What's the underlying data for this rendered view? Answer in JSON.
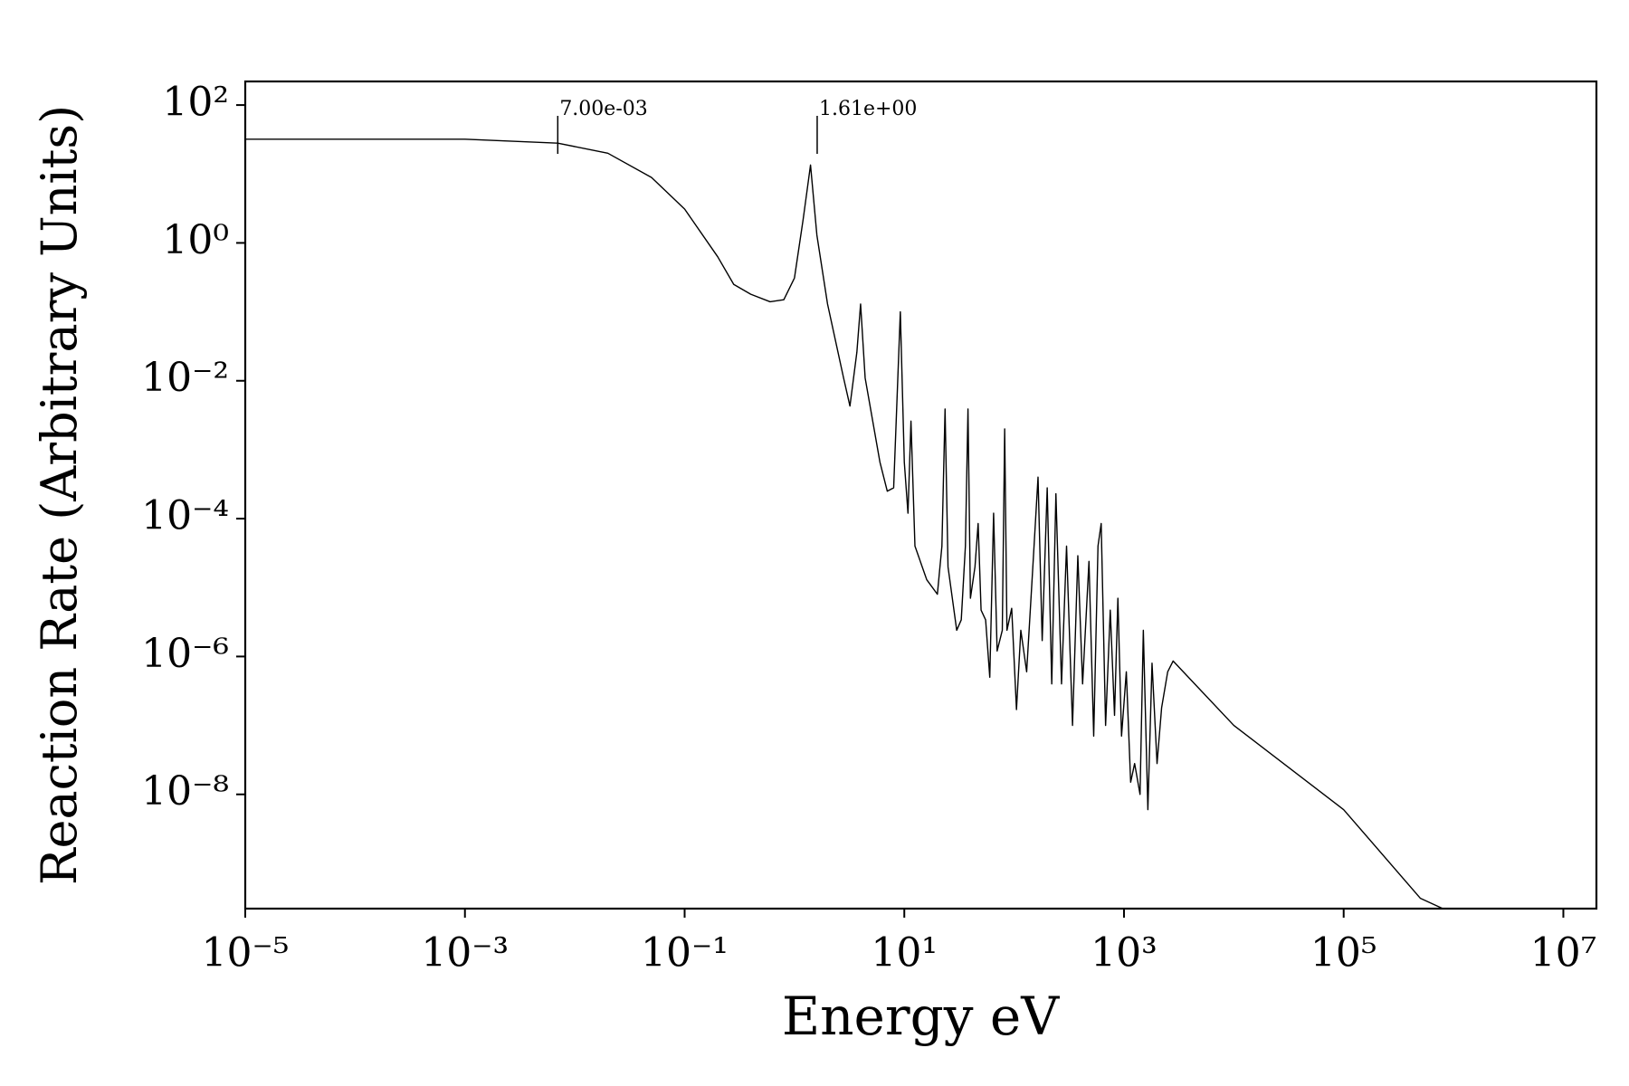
{
  "chart_data": {
    "type": "line",
    "xlabel": "Energy eV",
    "ylabel": "Reaction Rate (Arbitrary Units)",
    "xscale": "log",
    "yscale": "log",
    "xlim": [
      1e-05,
      20000000.0
    ],
    "ylim": [
      2.2e-10,
      220
    ],
    "xticks": [
      {
        "value": 1e-05,
        "label": "10⁻⁵"
      },
      {
        "value": 0.001,
        "label": "10⁻³"
      },
      {
        "value": 0.1,
        "label": "10⁻¹"
      },
      {
        "value": 10,
        "label": "10¹"
      },
      {
        "value": 1000,
        "label": "10³"
      },
      {
        "value": 100000.0,
        "label": "10⁵"
      },
      {
        "value": 10000000.0,
        "label": "10⁷"
      }
    ],
    "yticks": [
      {
        "value": 100,
        "label": "10²"
      },
      {
        "value": 1,
        "label": "10⁰"
      },
      {
        "value": 0.01,
        "label": "10⁻²"
      },
      {
        "value": 0.0001,
        "label": "10⁻⁴"
      },
      {
        "value": 1e-06,
        "label": "10⁻⁶"
      },
      {
        "value": 1e-08,
        "label": "10⁻⁸"
      }
    ],
    "color": "#000000",
    "annotations": [
      {
        "x": 0.007,
        "label": "7.00e-03"
      },
      {
        "x": 1.61,
        "label": "1.61e+00"
      }
    ],
    "x": [
      1e-05,
      0.0001,
      0.001,
      0.007,
      0.02,
      0.05,
      0.1,
      0.2,
      0.28,
      0.4,
      0.6,
      0.8,
      1.0,
      1.2,
      1.4,
      1.6,
      2,
      2.8,
      3.2,
      3.7,
      4.0,
      4.4,
      6,
      7,
      8,
      9.2,
      10,
      10.8,
      11.5,
      12.5,
      16,
      20,
      22,
      23.5,
      25,
      30,
      33,
      36,
      38,
      40,
      44,
      47,
      50,
      55,
      60,
      65,
      70,
      78,
      82,
      86,
      95,
      105,
      115,
      130,
      150,
      165,
      180,
      200,
      220,
      240,
      270,
      300,
      340,
      380,
      420,
      480,
      530,
      580,
      620,
      680,
      750,
      820,
      880,
      950,
      1050,
      1150,
      1250,
      1400,
      1500,
      1650,
      1800,
      2000,
      2200,
      2500,
      2800,
      10000,
      100000,
      500000,
      800000
    ],
    "values": [
      32,
      32,
      32,
      28,
      20,
      8.9,
      3.1,
      0.63,
      0.25,
      0.18,
      0.14,
      0.15,
      0.31,
      2.2,
      13.5,
      1.3,
      0.13,
      0.011,
      0.0043,
      0.026,
      0.13,
      0.011,
      0.00066,
      0.00025,
      0.00028,
      0.1,
      0.00066,
      0.00012,
      0.0026,
      4e-05,
      1.3e-05,
      8e-06,
      4e-05,
      0.0039,
      2e-05,
      2.4e-06,
      3.4e-06,
      4e-05,
      0.0039,
      7e-06,
      2e-05,
      8.5e-05,
      4.7e-06,
      3.4e-06,
      5e-07,
      0.00012,
      1.2e-06,
      2.4e-06,
      0.002,
      2.4e-06,
      5e-06,
      1.7e-07,
      2.4e-06,
      6e-07,
      2.9e-05,
      0.0004,
      1.7e-06,
      0.00028,
      4e-07,
      0.00023,
      4e-07,
      4e-05,
      1e-07,
      2.9e-05,
      4e-07,
      2.4e-05,
      7e-08,
      4e-05,
      8.5e-05,
      1e-07,
      4.7e-06,
      1.4e-07,
      7e-06,
      7e-08,
      6e-07,
      1.5e-08,
      2.8e-08,
      1e-08,
      2.4e-06,
      6e-09,
      8e-07,
      2.8e-08,
      1.8e-07,
      6e-07,
      8.6e-07,
      1e-07,
      6e-09,
      3.1e-10,
      2.2e-10
    ]
  }
}
